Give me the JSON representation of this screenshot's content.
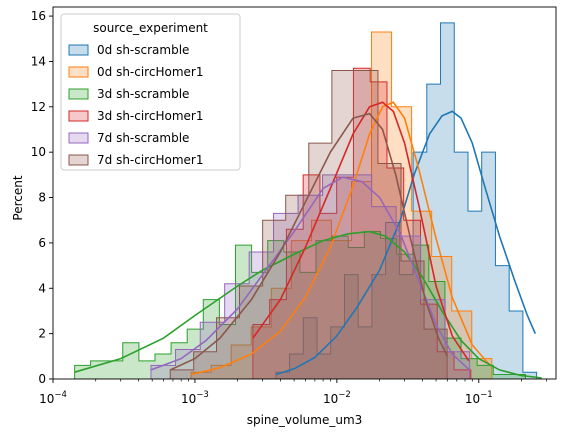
{
  "chart_data": {
    "type": "histogram",
    "xscale": "log",
    "xlabel": "spine_volume_um3",
    "ylabel": "Percent",
    "xlim": [
      0.0001,
      0.35
    ],
    "ylim": [
      0,
      16.4
    ],
    "x_ticks": [
      {
        "value": 0.0001,
        "base": "10",
        "exp": "−4"
      },
      {
        "value": 0.001,
        "base": "10",
        "exp": "−3"
      },
      {
        "value": 0.01,
        "base": "10",
        "exp": "−2"
      },
      {
        "value": 0.1,
        "base": "10",
        "exp": "−1"
      }
    ],
    "y_ticks": [
      0,
      2,
      4,
      6,
      8,
      10,
      12,
      14,
      16
    ],
    "legend": {
      "title": "source_experiment",
      "location": "top-left"
    },
    "series": [
      {
        "name": "0d sh-scramble",
        "color": "#1f77b4",
        "bin_edges": [
          0.00372,
          0.00464,
          0.0058,
          0.00725,
          0.00905,
          0.01131,
          0.01413,
          0.01766,
          0.02206,
          0.02757,
          0.03444,
          0.04303,
          0.05376,
          0.06717,
          0.08393,
          0.10487,
          0.13103,
          0.16372,
          0.20456,
          0.25558
        ],
        "values": [
          0.3,
          1.1,
          2.7,
          1.1,
          2.3,
          4.6,
          2.3,
          4.6,
          6.9,
          4.6,
          10.0,
          13.0,
          15.7,
          10.0,
          7.4,
          10.0,
          5.0,
          3.0,
          0.3
        ],
        "kde": {
          "x": [
            0.00372,
            0.005,
            0.007,
            0.01,
            0.014,
            0.02,
            0.028,
            0.035,
            0.045,
            0.055,
            0.065,
            0.075,
            0.09,
            0.11,
            0.14,
            0.18,
            0.22,
            0.25
          ],
          "y": [
            0.2,
            0.45,
            0.95,
            1.9,
            3.2,
            4.8,
            7.0,
            9.0,
            10.8,
            11.6,
            11.8,
            11.5,
            10.4,
            8.5,
            6.3,
            4.3,
            2.8,
            2.0
          ]
        }
      },
      {
        "name": "0d sh-circHomer1",
        "color": "#ff7f0e",
        "bin_edges": [
          0.00094,
          0.0013,
          0.0018,
          0.00249,
          0.00345,
          0.00478,
          0.00662,
          0.00916,
          0.01268,
          0.01755,
          0.0243,
          0.03364,
          0.04657,
          0.06447,
          0.08925,
          0.12355
        ],
        "values": [
          0.3,
          0.6,
          1.5,
          2.3,
          4.0,
          6.1,
          7.0,
          6.1,
          8.7,
          15.3,
          12.0,
          7.4,
          5.4,
          3.0,
          0.9
        ],
        "kde": {
          "x": [
            0.00094,
            0.0015,
            0.0025,
            0.004,
            0.006,
            0.009,
            0.013,
            0.017,
            0.021,
            0.025,
            0.03,
            0.038,
            0.05,
            0.065,
            0.09,
            0.12
          ],
          "y": [
            0.2,
            0.5,
            1.1,
            2.1,
            3.6,
            5.8,
            8.5,
            10.8,
            12.0,
            12.2,
            11.5,
            9.2,
            6.2,
            3.6,
            1.5,
            0.6
          ]
        }
      },
      {
        "name": "3d sh-scramble",
        "color": "#2ca02c",
        "bin_edges": [
          0.000142,
          0.000184,
          0.000239,
          0.00031,
          0.000403,
          0.000523,
          0.000679,
          0.000882,
          0.001145,
          0.001487,
          0.001931,
          0.002508,
          0.003257,
          0.00423,
          0.005493,
          0.007134,
          0.009265,
          0.012033,
          0.015627,
          0.020295,
          0.026357,
          0.03423,
          0.044455,
          0.057734,
          0.074979,
          0.097376,
          0.126463,
          0.164238,
          0.213298,
          0.277012
        ],
        "values": [
          0.6,
          0.8,
          0.8,
          1.6,
          0.8,
          1.1,
          1.6,
          2.2,
          3.5,
          2.4,
          5.9,
          4.7,
          6.1,
          5.6,
          4.7,
          6.1,
          6.3,
          5.8,
          6.5,
          6.2,
          5.5,
          5.9,
          4.3,
          1.8,
          0.9,
          0.6,
          0.2,
          0.2,
          0.0
        ],
        "kde": {
          "x": [
            0.000142,
            0.0003,
            0.0006,
            0.001,
            0.002,
            0.003,
            0.005,
            0.008,
            0.012,
            0.017,
            0.022,
            0.03,
            0.04,
            0.055,
            0.075,
            0.1,
            0.14,
            0.2,
            0.277
          ],
          "y": [
            0.3,
            0.9,
            1.8,
            2.8,
            4.1,
            4.8,
            5.5,
            6.1,
            6.4,
            6.5,
            6.3,
            5.6,
            4.5,
            3.0,
            1.7,
            0.9,
            0.4,
            0.15,
            0.05
          ]
        }
      },
      {
        "name": "3d sh-circHomer1",
        "color": "#d62728",
        "bin_edges": [
          0.00256,
          0.00336,
          0.00441,
          0.00579,
          0.0076,
          0.00997,
          0.01309,
          0.01718,
          0.02255,
          0.02959,
          0.03884,
          0.05098,
          0.06691,
          0.08782
        ],
        "values": [
          2.4,
          3.5,
          6.6,
          9.0,
          7.3,
          8.9,
          13.7,
          13.1,
          9.3,
          7.0,
          3.3,
          1.2,
          0.4
        ],
        "kde": {
          "x": [
            0.00256,
            0.004,
            0.006,
            0.009,
            0.013,
            0.017,
            0.021,
            0.025,
            0.03,
            0.038,
            0.05,
            0.065,
            0.085
          ],
          "y": [
            1.8,
            3.5,
            5.8,
            8.4,
            10.8,
            12.0,
            12.2,
            11.8,
            10.4,
            7.6,
            4.1,
            1.9,
            0.8
          ]
        }
      },
      {
        "name": "7d sh-scramble",
        "color": "#9467bd",
        "bin_edges": [
          0.00049,
          0.00073,
          0.00109,
          0.00162,
          0.00241,
          0.00358,
          0.00533,
          0.00793,
          0.01181,
          0.01758,
          0.02616,
          0.03893,
          0.05793,
          0.08622
        ],
        "values": [
          0.6,
          1.3,
          2.5,
          4.2,
          5.6,
          7.3,
          8.1,
          9.0,
          9.0,
          7.6,
          6.3,
          3.5,
          1.2
        ],
        "kde": {
          "x": [
            0.00049,
            0.0008,
            0.0012,
            0.002,
            0.003,
            0.005,
            0.008,
            0.011,
            0.015,
            0.02,
            0.028,
            0.038,
            0.05,
            0.065,
            0.086
          ],
          "y": [
            0.4,
            0.9,
            1.7,
            3.1,
            4.6,
            6.5,
            8.4,
            8.9,
            8.7,
            8.0,
            6.4,
            4.3,
            2.4,
            1.1,
            0.4
          ]
        }
      },
      {
        "name": "7d sh-circHomer1",
        "color": "#8c564b",
        "bin_edges": [
          0.00067,
          0.00098,
          0.00142,
          0.00206,
          0.003,
          0.00436,
          0.00634,
          0.00922,
          0.0134,
          0.01948,
          0.02832,
          0.04116,
          0.05983
        ],
        "values": [
          0.4,
          1.2,
          2.7,
          4.1,
          7.0,
          8.1,
          10.4,
          13.6,
          13.6,
          9.5,
          5.2,
          2.2
        ],
        "kde": {
          "x": [
            0.00067,
            0.001,
            0.0015,
            0.0025,
            0.004,
            0.006,
            0.009,
            0.013,
            0.017,
            0.021,
            0.026,
            0.033,
            0.042,
            0.052,
            0.06
          ],
          "y": [
            0.4,
            0.9,
            1.8,
            3.5,
            5.6,
            7.8,
            10.0,
            11.5,
            11.7,
            11.0,
            9.0,
            6.2,
            3.5,
            1.8,
            1.0
          ]
        }
      }
    ]
  }
}
